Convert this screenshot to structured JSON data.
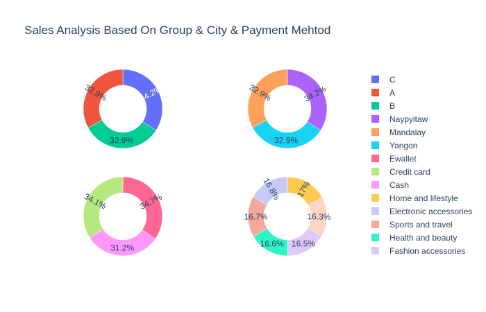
{
  "title": "Sales Analysis Based On Group & City & Payment Mehtod",
  "chart_data": [
    {
      "type": "pie",
      "hole": true,
      "slices": [
        {
          "label": "C",
          "value": 34.2,
          "text": "34.2%",
          "color": "#636efa",
          "text_color": "#ffffff"
        },
        {
          "label": "B",
          "value": 32.9,
          "text": "32.9%",
          "color": "#00cc96",
          "text_color": "#2a3f5f"
        },
        {
          "label": "A",
          "value": 32.9,
          "text": "32.9%",
          "color": "#ef553b",
          "text_color": "#2a3f5f"
        }
      ]
    },
    {
      "type": "pie",
      "hole": true,
      "slices": [
        {
          "label": "Naypyitaw",
          "value": 34.2,
          "text": "34.2%",
          "color": "#ab63fa",
          "text_color": "#2a3f5f"
        },
        {
          "label": "Yangon",
          "value": 32.9,
          "text": "32.9%",
          "color": "#19d3f3",
          "text_color": "#2a3f5f"
        },
        {
          "label": "Mandalay",
          "value": 32.9,
          "text": "32.9%",
          "color": "#ffa15a",
          "text_color": "#2a3f5f"
        }
      ]
    },
    {
      "type": "pie",
      "hole": true,
      "slices": [
        {
          "label": "Ewallet",
          "value": 34.7,
          "text": "34.7%",
          "color": "#ff6692",
          "text_color": "#2a3f5f"
        },
        {
          "label": "Cash",
          "value": 31.2,
          "text": "31.2%",
          "color": "#ff97ff",
          "text_color": "#2a3f5f"
        },
        {
          "label": "Credit card",
          "value": 34.1,
          "text": "34.1%",
          "color": "#b6e880",
          "text_color": "#2a3f5f"
        }
      ]
    },
    {
      "type": "pie",
      "hole": true,
      "slices": [
        {
          "label": "Home and lifestyle",
          "value": 17.0,
          "text": "17%",
          "color": "#fecb52",
          "text_color": "#2a3f5f"
        },
        {
          "label": "Fashion accessories",
          "value": 16.3,
          "text": "16.3%",
          "color": "#fed4c4",
          "text_color": "#2a3f5f"
        },
        {
          "label": "Fashion accessories",
          "value": 16.5,
          "text": "16.5%",
          "color": "#e0c9f7",
          "text_color": "#2a3f5f"
        },
        {
          "label": "Health and beauty",
          "value": 16.6,
          "text": "16.6%",
          "color": "#2ff5c6",
          "text_color": "#2a3f5f"
        },
        {
          "label": "Sports and travel",
          "value": 16.7,
          "text": "16.7%",
          "color": "#f6a89c",
          "text_color": "#2a3f5f"
        },
        {
          "label": "Electronic accessories",
          "value": 16.8,
          "text": "16.8%",
          "color": "#c6caf8",
          "text_color": "#2a3f5f"
        }
      ]
    }
  ],
  "legend": {
    "placement": "right",
    "items": [
      {
        "label": "C",
        "color": "#636efa"
      },
      {
        "label": "A",
        "color": "#ef553b"
      },
      {
        "label": "B",
        "color": "#00cc96"
      },
      {
        "label": "Naypyitaw",
        "color": "#ab63fa"
      },
      {
        "label": "Mandalay",
        "color": "#ffa15a"
      },
      {
        "label": "Yangon",
        "color": "#19d3f3"
      },
      {
        "label": "Ewallet",
        "color": "#ff6692"
      },
      {
        "label": "Credit card",
        "color": "#b6e880"
      },
      {
        "label": "Cash",
        "color": "#ff97ff"
      },
      {
        "label": "Home and lifestyle",
        "color": "#fecb52"
      },
      {
        "label": "Electronic accessories",
        "color": "#c6caf8"
      },
      {
        "label": "Sports and travel",
        "color": "#f6a89c"
      },
      {
        "label": "Health and beauty",
        "color": "#2ff5c6"
      },
      {
        "label": "Fashion accessories",
        "color": "#e0c9f7"
      }
    ]
  }
}
